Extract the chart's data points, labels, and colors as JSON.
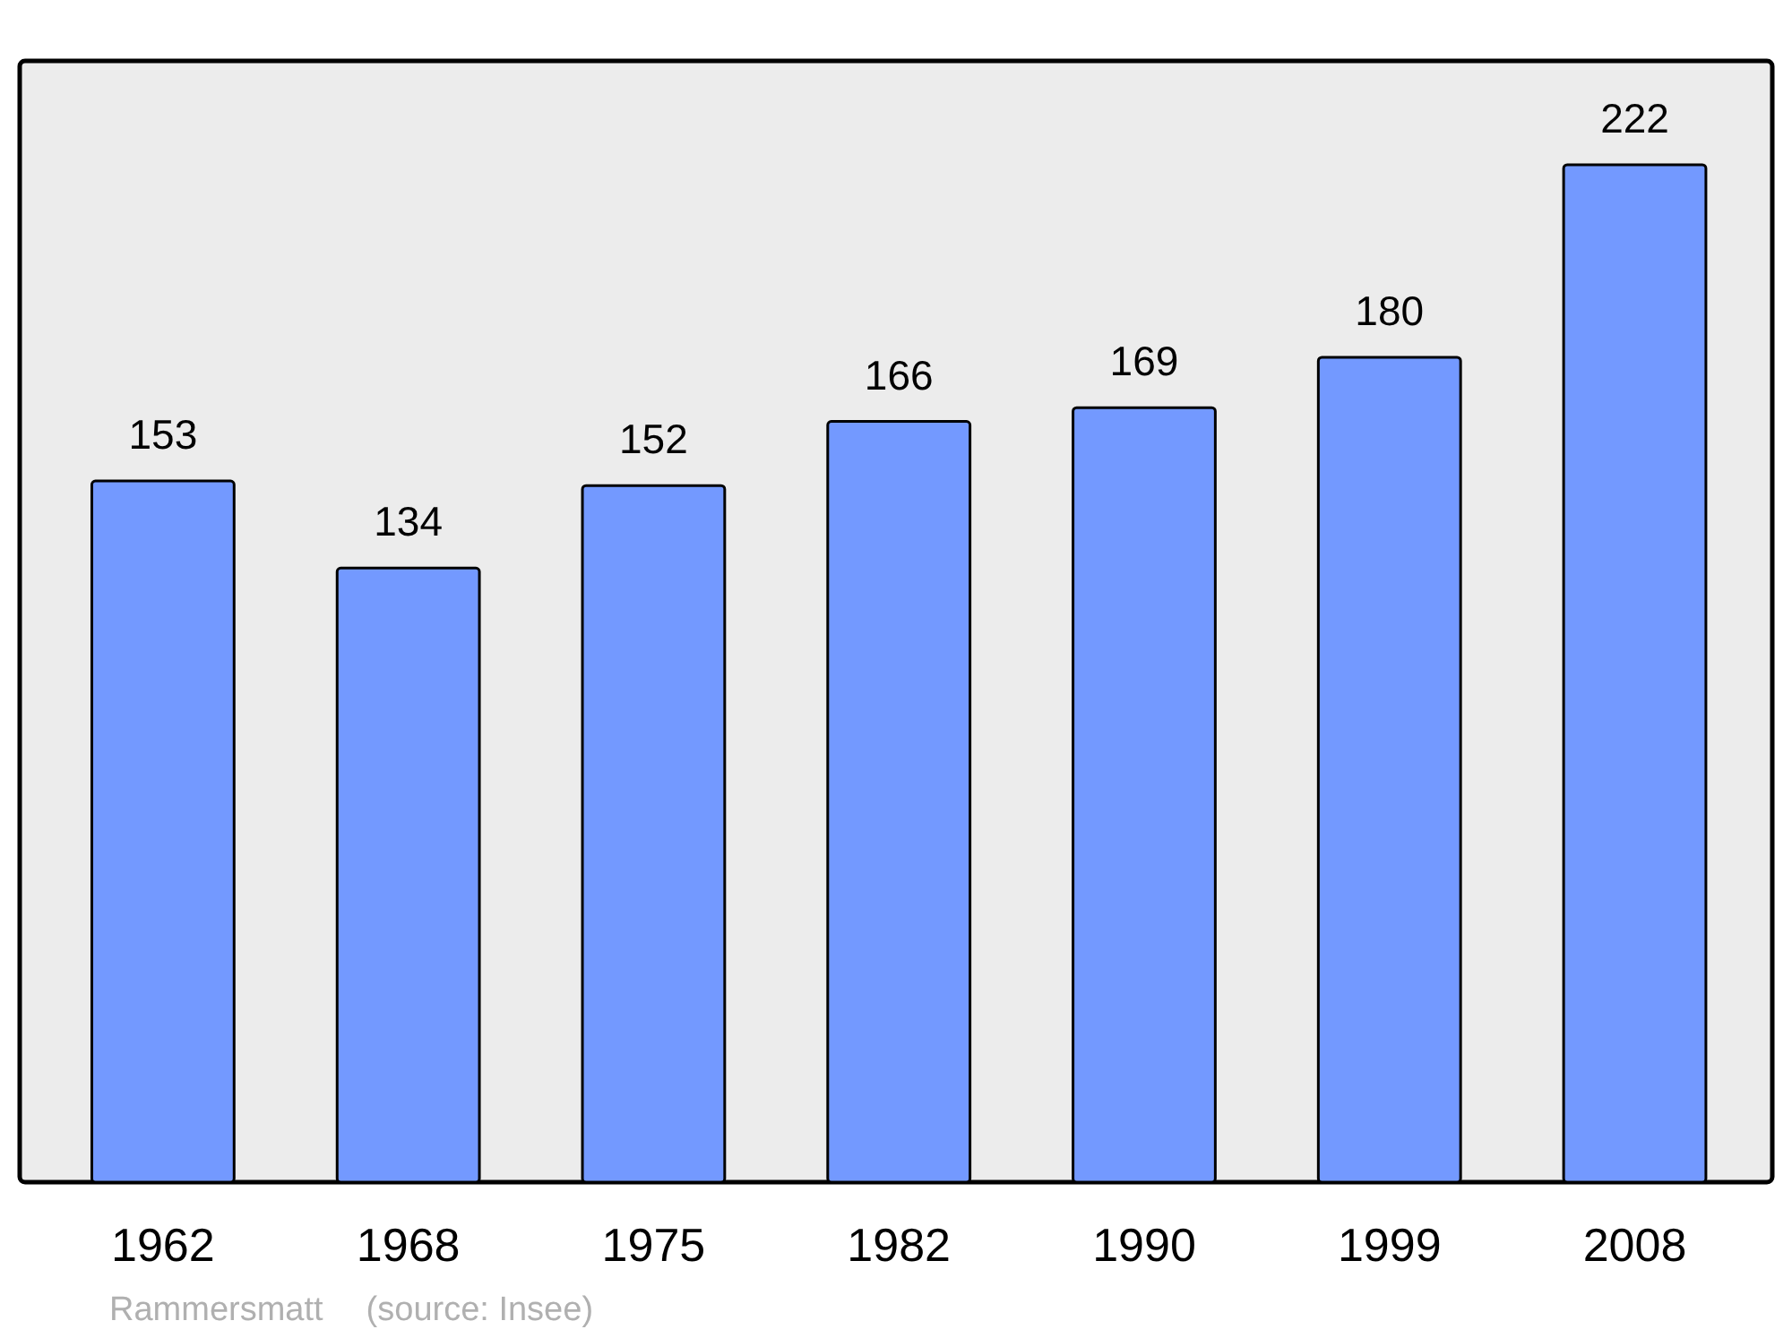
{
  "chart_data": {
    "type": "bar",
    "categories": [
      "1962",
      "1968",
      "1975",
      "1982",
      "1990",
      "1999",
      "2008"
    ],
    "values": [
      153,
      134,
      152,
      166,
      169,
      180,
      222
    ],
    "color": "#7399ff",
    "data_labels": true,
    "annotations": [
      "Rammersmatt",
      "(source: Insee)"
    ]
  }
}
